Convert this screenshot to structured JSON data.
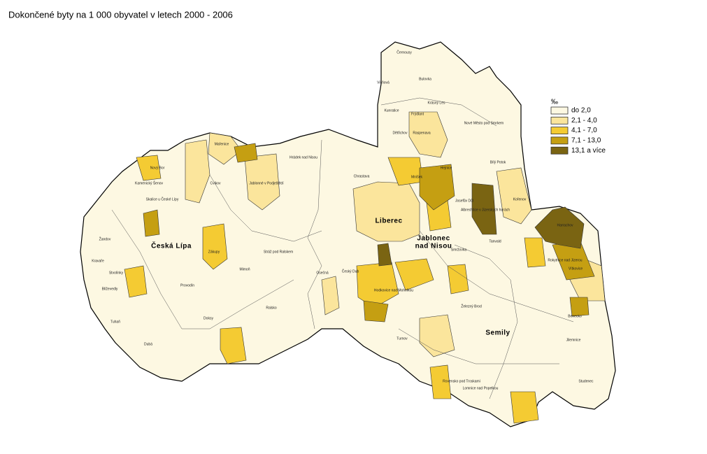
{
  "title": "Dokončené byty na 1 000 obyvatel v letech 2000 - 2006",
  "legend": {
    "title": "‰",
    "items": [
      {
        "label": "do  2,0",
        "color": "#fdf8e2"
      },
      {
        "label": "2,1  -  4,0",
        "color": "#fbe59c"
      },
      {
        "label": "4,1  -  7,0",
        "color": "#f4cb33"
      },
      {
        "label": "7,1  -  13,0",
        "color": "#c59f12"
      },
      {
        "label": "13,1  a  více",
        "color": "#7a6412"
      }
    ]
  },
  "towns": [
    "Česká Lípa",
    "Liberec",
    "Jablonec",
    "nad Nisou",
    "Semily"
  ],
  "places": [
    "Černousy",
    "Višňová",
    "Bulovka",
    "Krásný Les",
    "Kunratice",
    "Frýdlant",
    "Dětřichov",
    "Raspenava",
    "Nové Město pod Smrkem",
    "Hejnice",
    "Bílý Potok",
    "Hrádek nad Nisou",
    "Chrastava",
    "Mníšek",
    "Jablonné v Podještědí",
    "Mařenice",
    "Cvikov",
    "Kamenický Šenov",
    "Nový Bor",
    "Skalice u České Lípy",
    "Žandov",
    "Kravaře",
    "Stvolínky",
    "Blíževedly",
    "Tuhaň",
    "Dubá",
    "Doksy",
    "Ralsko",
    "Mimoň",
    "Zákupy",
    "Stráž pod Ralskem",
    "Provodín",
    "Osečná",
    "Český Dub",
    "Hodkovice nad Mohelkou",
    "Josefův Důl",
    "Albrechtice v Jizerských horách",
    "Kořenov",
    "Tanvald",
    "Smržovka",
    "Harrachov",
    "Rokytnice nad Jizerou",
    "Vítkovice",
    "Železný Brod",
    "Turnov",
    "Jilemnice",
    "Lomnice nad Popelkou",
    "Rovensko pod Troskami",
    "Benecko",
    "Studenec"
  ]
}
